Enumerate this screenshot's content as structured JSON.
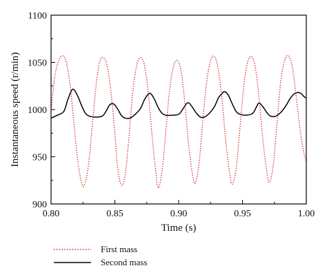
{
  "chart_data": {
    "type": "line",
    "title": "",
    "xlabel": "Time (s)",
    "ylabel": "Instantaneous speed (r/min)",
    "xlim": [
      0.8,
      1.0
    ],
    "ylim": [
      900,
      1100
    ],
    "x_ticks": [
      "0.80",
      "0.85",
      "0.90",
      "0.95",
      "1.00"
    ],
    "y_ticks": [
      "900",
      "950",
      "1000",
      "1050",
      "1100"
    ],
    "grid": false,
    "legend_position": "bottom-left",
    "series": [
      {
        "name": "First mass",
        "color": "#d62f2f",
        "style": "dotted",
        "points": [
          [
            0.8,
            1000
          ],
          [
            0.803,
            1035
          ],
          [
            0.806,
            1052
          ],
          [
            0.809,
            1057
          ],
          [
            0.812,
            1050
          ],
          [
            0.815,
            1025
          ],
          [
            0.818,
            985
          ],
          [
            0.821,
            945
          ],
          [
            0.824,
            922
          ],
          [
            0.826,
            920
          ],
          [
            0.829,
            938
          ],
          [
            0.832,
            978
          ],
          [
            0.835,
            1022
          ],
          [
            0.838,
            1050
          ],
          [
            0.841,
            1055
          ],
          [
            0.844,
            1046
          ],
          [
            0.847,
            1018
          ],
          [
            0.85,
            975
          ],
          [
            0.852,
            940
          ],
          [
            0.855,
            920
          ],
          [
            0.858,
            930
          ],
          [
            0.861,
            970
          ],
          [
            0.864,
            1018
          ],
          [
            0.867,
            1046
          ],
          [
            0.87,
            1055
          ],
          [
            0.873,
            1048
          ],
          [
            0.876,
            1020
          ],
          [
            0.879,
            975
          ],
          [
            0.882,
            935
          ],
          [
            0.884,
            917
          ],
          [
            0.887,
            935
          ],
          [
            0.89,
            978
          ],
          [
            0.893,
            1022
          ],
          [
            0.896,
            1046
          ],
          [
            0.899,
            1052
          ],
          [
            0.902,
            1040
          ],
          [
            0.905,
            1005
          ],
          [
            0.908,
            960
          ],
          [
            0.911,
            930
          ],
          [
            0.913,
            922
          ],
          [
            0.916,
            943
          ],
          [
            0.919,
            990
          ],
          [
            0.922,
            1030
          ],
          [
            0.925,
            1052
          ],
          [
            0.928,
            1056
          ],
          [
            0.931,
            1043
          ],
          [
            0.934,
            1010
          ],
          [
            0.937,
            965
          ],
          [
            0.94,
            932
          ],
          [
            0.942,
            921
          ],
          [
            0.945,
            937
          ],
          [
            0.948,
            980
          ],
          [
            0.951,
            1025
          ],
          [
            0.954,
            1050
          ],
          [
            0.957,
            1056
          ],
          [
            0.96,
            1045
          ],
          [
            0.963,
            1012
          ],
          [
            0.966,
            968
          ],
          [
            0.969,
            935
          ],
          [
            0.971,
            923
          ],
          [
            0.974,
            940
          ],
          [
            0.977,
            985
          ],
          [
            0.98,
            1030
          ],
          [
            0.983,
            1052
          ],
          [
            0.986,
            1057
          ],
          [
            0.989,
            1046
          ],
          [
            0.992,
            1015
          ],
          [
            0.995,
            980
          ],
          [
            0.998,
            955
          ],
          [
            1.0,
            945
          ]
        ]
      },
      {
        "name": "Second mass",
        "color": "#000000",
        "style": "solid",
        "points": [
          [
            0.8,
            991
          ],
          [
            0.805,
            994
          ],
          [
            0.81,
            998
          ],
          [
            0.813,
            1010
          ],
          [
            0.816,
            1020
          ],
          [
            0.818,
            1021
          ],
          [
            0.821,
            1014
          ],
          [
            0.824,
            1004
          ],
          [
            0.827,
            996
          ],
          [
            0.83,
            993
          ],
          [
            0.835,
            992
          ],
          [
            0.84,
            993
          ],
          [
            0.843,
            998
          ],
          [
            0.846,
            1005
          ],
          [
            0.849,
            1006
          ],
          [
            0.852,
            1001
          ],
          [
            0.855,
            994
          ],
          [
            0.858,
            991
          ],
          [
            0.862,
            991
          ],
          [
            0.866,
            995
          ],
          [
            0.87,
            1001
          ],
          [
            0.873,
            1010
          ],
          [
            0.876,
            1016
          ],
          [
            0.878,
            1017
          ],
          [
            0.881,
            1011
          ],
          [
            0.884,
            1002
          ],
          [
            0.887,
            996
          ],
          [
            0.89,
            994
          ],
          [
            0.895,
            994
          ],
          [
            0.9,
            995
          ],
          [
            0.903,
            1000
          ],
          [
            0.906,
            1006
          ],
          [
            0.908,
            1007
          ],
          [
            0.911,
            1002
          ],
          [
            0.914,
            996
          ],
          [
            0.917,
            992
          ],
          [
            0.92,
            992
          ],
          [
            0.924,
            996
          ],
          [
            0.928,
            1003
          ],
          [
            0.931,
            1012
          ],
          [
            0.934,
            1017
          ],
          [
            0.936,
            1019
          ],
          [
            0.939,
            1015
          ],
          [
            0.942,
            1006
          ],
          [
            0.945,
            998
          ],
          [
            0.948,
            995
          ],
          [
            0.953,
            994
          ],
          [
            0.958,
            996
          ],
          [
            0.961,
            1003
          ],
          [
            0.963,
            1007
          ],
          [
            0.966,
            1003
          ],
          [
            0.969,
            997
          ],
          [
            0.972,
            993
          ],
          [
            0.976,
            993
          ],
          [
            0.98,
            997
          ],
          [
            0.984,
            1004
          ],
          [
            0.987,
            1011
          ],
          [
            0.99,
            1016
          ],
          [
            0.993,
            1018
          ],
          [
            0.996,
            1017
          ],
          [
            0.998,
            1014
          ],
          [
            1.0,
            1012
          ]
        ]
      }
    ]
  }
}
